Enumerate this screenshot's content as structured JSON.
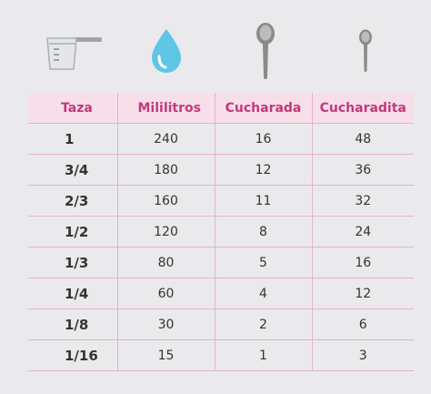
{
  "icons": [
    "measuring-cup-icon",
    "water-drop-icon",
    "tablespoon-icon",
    "teaspoon-icon"
  ],
  "colors": {
    "header_bg": "#f7dfe9",
    "header_text": "#c2397a",
    "grid": "#e6b2c8",
    "drop": "#5fc6e6",
    "spoon": "#8a8a8a",
    "background": "#eaeaec"
  },
  "table": {
    "headers": [
      "Taza",
      "Mililitros",
      "Cucharada",
      "Cucharadita"
    ],
    "rows": [
      [
        "1",
        "240",
        "16",
        "48"
      ],
      [
        "3/4",
        "180",
        "12",
        "36"
      ],
      [
        "2/3",
        "160",
        "11",
        "32"
      ],
      [
        "1/2",
        "120",
        "8",
        "24"
      ],
      [
        "1/3",
        "80",
        "5",
        "16"
      ],
      [
        "1/4",
        "60",
        "4",
        "12"
      ],
      [
        "1/8",
        "30",
        "2",
        "6"
      ],
      [
        "1/16",
        "15",
        "1",
        "3"
      ]
    ]
  }
}
